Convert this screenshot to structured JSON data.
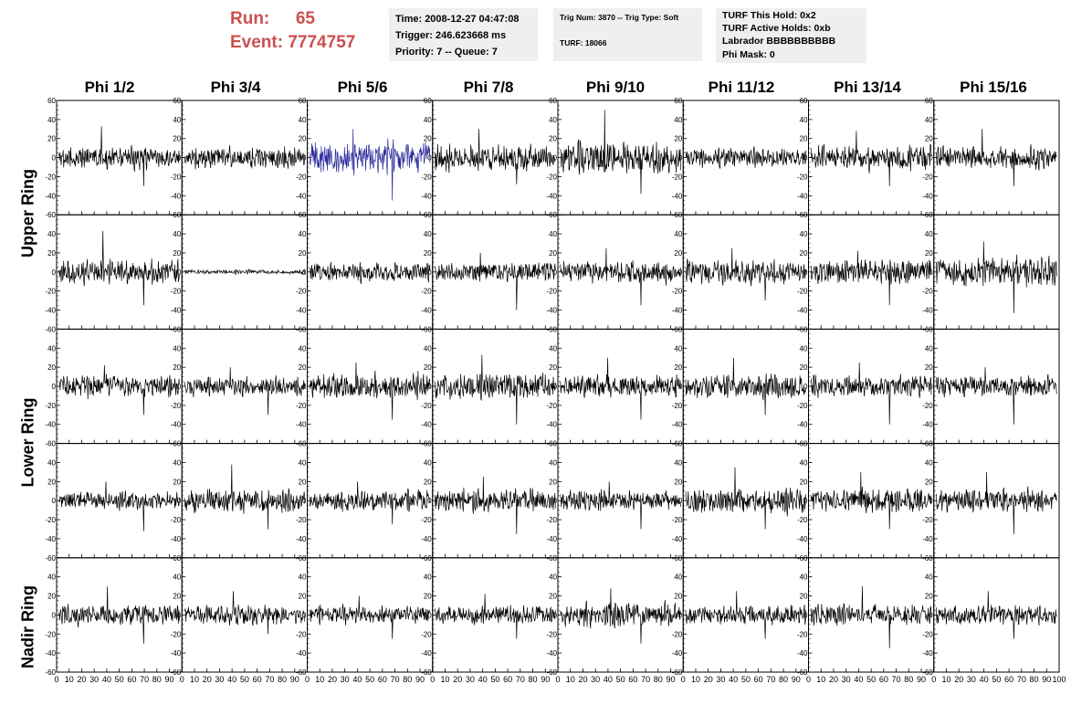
{
  "header": {
    "run_label": "Run:",
    "run_value": "65",
    "event_label": "Event:",
    "event_value": "7774757",
    "time_line": "Time: 2008-12-27 04:47:08",
    "trigger_line": "Trigger: 246.623668 ms",
    "priority_line": "Priority: 7 -- Queue: 7",
    "trig_line": "Trig Num: 3870 -- Trig Type: Soft",
    "turf_line": "TURF: 18066",
    "turf_hold_line": "TURF This Hold: 0x2",
    "turf_active_line": "TURF Active Holds: 0xb",
    "labrador_line": "Labrador BBBBBBBBBB",
    "phi_mask_line": "Phi Mask: 0",
    "run_color": "#cc4f4f",
    "box_color": "#efefef"
  },
  "columns": [
    "Phi 1/2",
    "Phi 3/4",
    "Phi 5/6",
    "Phi 7/8",
    "Phi 9/10",
    "Phi 11/12",
    "Phi 13/14",
    "Phi 15/16"
  ],
  "rings": [
    "Upper Ring",
    "Lower Ring",
    "Nadir Ring"
  ],
  "chart_data": {
    "type": "line",
    "grid": false,
    "rows": 5,
    "cols": 8,
    "xlim": [
      0,
      100
    ],
    "ylim": [
      -60,
      60
    ],
    "x_ticks": [
      "0",
      "10",
      "20",
      "30",
      "40",
      "50",
      "60",
      "70",
      "80",
      "90",
      "100"
    ],
    "y_ticks": [
      "60",
      "40",
      "20",
      "0",
      "-20",
      "-40",
      "-60"
    ],
    "default_color": "#000000",
    "highlight_color": "#2a2a9c",
    "highlight_panel": [
      0,
      2
    ],
    "panels": [
      [
        {
          "amp": 15,
          "extra_spikes": [
            -30,
            33
          ]
        },
        {
          "amp": 14
        },
        {
          "amp": 22,
          "extra_spikes": [
            -45,
            30
          ]
        },
        {
          "amp": 17,
          "extra_spikes": [
            -28,
            30
          ]
        },
        {
          "amp": 22,
          "extra_spikes": [
            -38,
            50
          ]
        },
        {
          "amp": 12
        },
        {
          "amp": 16,
          "extra_spikes": [
            -30,
            28
          ]
        },
        {
          "amp": 15,
          "extra_spikes": [
            -30,
            30
          ]
        }
      ],
      [
        {
          "amp": 16,
          "extra_spikes": [
            -35,
            43
          ]
        },
        {
          "amp": 3
        },
        {
          "amp": 13
        },
        {
          "amp": 14,
          "extra_spikes": [
            -40,
            20
          ]
        },
        {
          "amp": 15,
          "extra_spikes": [
            -35,
            25
          ]
        },
        {
          "amp": 16,
          "extra_spikes": [
            -30,
            25
          ]
        },
        {
          "amp": 16,
          "extra_spikes": [
            -35,
            22
          ]
        },
        {
          "amp": 20,
          "extra_spikes": [
            -43,
            32
          ]
        }
      ],
      [
        {
          "amp": 15,
          "extra_spikes": [
            -30,
            22
          ]
        },
        {
          "amp": 13,
          "extra_spikes": [
            -30,
            20
          ]
        },
        {
          "amp": 17,
          "extra_spikes": [
            -35,
            25
          ]
        },
        {
          "amp": 18,
          "extra_spikes": [
            -40,
            33
          ]
        },
        {
          "amp": 16,
          "extra_spikes": [
            -35,
            30
          ]
        },
        {
          "amp": 16,
          "extra_spikes": [
            -30,
            30
          ]
        },
        {
          "amp": 15,
          "extra_spikes": [
            -40,
            25
          ]
        },
        {
          "amp": 14,
          "extra_spikes": [
            -40,
            20
          ]
        }
      ],
      [
        {
          "amp": 12,
          "extra_spikes": [
            -32,
            20
          ]
        },
        {
          "amp": 16,
          "extra_spikes": [
            -30,
            38
          ]
        },
        {
          "amp": 14,
          "extra_spikes": [
            -25,
            20
          ]
        },
        {
          "amp": 15,
          "extra_spikes": [
            -35,
            25
          ]
        },
        {
          "amp": 13,
          "extra_spikes": [
            -30,
            20
          ]
        },
        {
          "amp": 16,
          "extra_spikes": [
            -30,
            35
          ]
        },
        {
          "amp": 16,
          "extra_spikes": [
            -30,
            30
          ]
        },
        {
          "amp": 15,
          "extra_spikes": [
            -35,
            30
          ]
        }
      ],
      [
        {
          "amp": 14,
          "extra_spikes": [
            -30,
            30
          ]
        },
        {
          "amp": 13,
          "extra_spikes": [
            -20,
            25
          ]
        },
        {
          "amp": 12,
          "extra_spikes": [
            -25,
            20
          ]
        },
        {
          "amp": 13,
          "extra_spikes": [
            -25,
            22
          ]
        },
        {
          "amp": 15,
          "extra_spikes": [
            -30,
            28
          ]
        },
        {
          "amp": 13,
          "extra_spikes": [
            -25,
            25
          ]
        },
        {
          "amp": 14,
          "extra_spikes": [
            -35,
            30
          ]
        },
        {
          "amp": 13,
          "extra_spikes": [
            -25,
            25
          ]
        }
      ]
    ]
  }
}
